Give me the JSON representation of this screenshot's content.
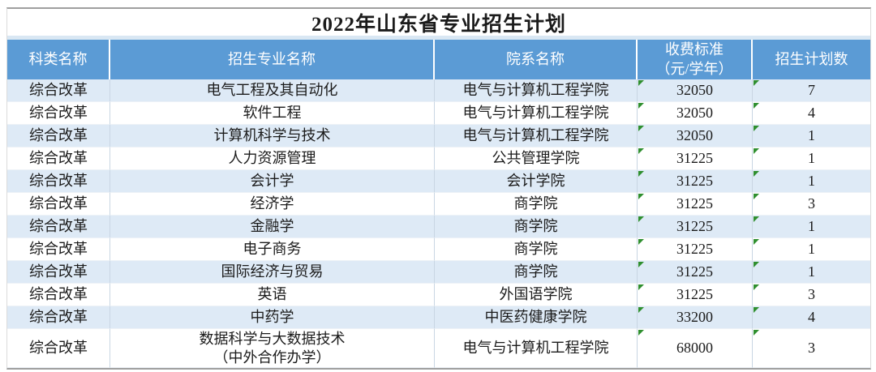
{
  "title": "2022年山东省专业招生计划",
  "colors": {
    "header_bg": "#5B9BD5",
    "header_text": "#FFFFFF",
    "alt_row_bg": "#DEEAF6",
    "marker_green": "#2F8F2F",
    "outer_border": "#9F9F9F"
  },
  "icons": {
    "cell_marker": "green-triangle"
  },
  "header": {
    "col_category": "科类名称",
    "col_major": "招生专业名称",
    "col_department": "院系名称",
    "col_fee": "收费标准\n（元/学年）",
    "col_count": "招生计划数"
  },
  "rows": [
    {
      "category": "综合改革",
      "major": "电气工程及其自动化",
      "department": "电气与计算机工程学院",
      "fee": "32050",
      "count": "7"
    },
    {
      "category": "综合改革",
      "major": "软件工程",
      "department": "电气与计算机工程学院",
      "fee": "32050",
      "count": "4"
    },
    {
      "category": "综合改革",
      "major": "计算机科学与技术",
      "department": "电气与计算机工程学院",
      "fee": "32050",
      "count": "1"
    },
    {
      "category": "综合改革",
      "major": "人力资源管理",
      "department": "公共管理学院",
      "fee": "31225",
      "count": "1"
    },
    {
      "category": "综合改革",
      "major": "会计学",
      "department": "会计学院",
      "fee": "31225",
      "count": "1"
    },
    {
      "category": "综合改革",
      "major": "经济学",
      "department": "商学院",
      "fee": "31225",
      "count": "3"
    },
    {
      "category": "综合改革",
      "major": "金融学",
      "department": "商学院",
      "fee": "31225",
      "count": "1"
    },
    {
      "category": "综合改革",
      "major": "电子商务",
      "department": "商学院",
      "fee": "31225",
      "count": "1"
    },
    {
      "category": "综合改革",
      "major": "国际经济与贸易",
      "department": "商学院",
      "fee": "31225",
      "count": "1"
    },
    {
      "category": "综合改革",
      "major": "英语",
      "department": "外国语学院",
      "fee": "31225",
      "count": "3"
    },
    {
      "category": "综合改革",
      "major": "中药学",
      "department": "中医药健康学院",
      "fee": "33200",
      "count": "4"
    },
    {
      "category": "综合改革",
      "major": "数据科学与大数据技术\n（中外合作办学）",
      "department": "电气与计算机工程学院",
      "fee": "68000",
      "count": "3"
    }
  ]
}
